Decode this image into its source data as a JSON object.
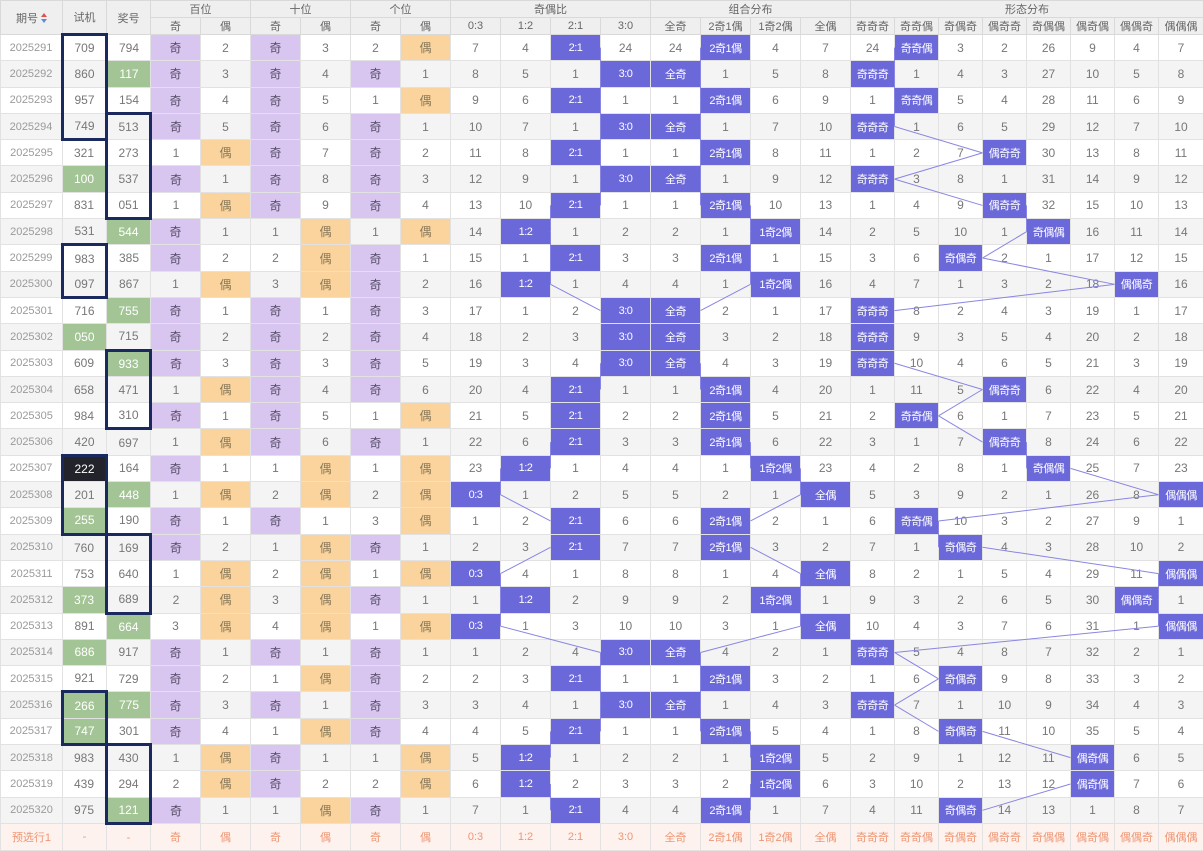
{
  "colors": {
    "hit": "#6b68d9",
    "odd_cell": "#d8c6f0",
    "even_cell": "#fbd49d",
    "green_cell": "#a3c596",
    "dark_cell": "#23232b",
    "box_border": "#1b2a5e",
    "trend_line": "#8886e2",
    "footer_bg": "#fdf2ed",
    "footer_text": "#ef9674",
    "header_bg": "#efefef",
    "zebra": "#f4f4f4"
  },
  "header": {
    "period": "期号",
    "shiji": "试机",
    "jiang": "奖号",
    "groups": [
      {
        "label": "百位",
        "span": 2
      },
      {
        "label": "十位",
        "span": 2
      },
      {
        "label": "个位",
        "span": 2
      },
      {
        "label": "奇偶比",
        "span": 4
      },
      {
        "label": "组合分布",
        "span": 4
      },
      {
        "label": "形态分布",
        "span": 8
      }
    ],
    "subs": [
      "奇",
      "偶",
      "奇",
      "偶",
      "奇",
      "偶",
      "0:3",
      "1:2",
      "2:1",
      "3:0",
      "全奇",
      "2奇1偶",
      "1奇2偶",
      "全偶",
      "奇奇奇",
      "奇奇偶",
      "奇偶奇",
      "偶奇奇",
      "奇偶偶",
      "偶奇偶",
      "偶偶奇",
      "偶偶偶"
    ]
  },
  "rows": [
    {
      "p": "2025291",
      "s": "709",
      "sc": "",
      "sb": "t",
      "j": "794",
      "jc": "",
      "jb": "",
      "c": [
        "奇",
        "2",
        "奇",
        "3",
        "2",
        "偶",
        "7",
        "4",
        "*2:1",
        "24",
        "24",
        "*2奇1偶",
        "4",
        "7",
        "24",
        "*奇奇偶",
        "3",
        "2",
        "26",
        "9",
        "4",
        "7"
      ]
    },
    {
      "p": "2025292",
      "s": "860",
      "sc": "",
      "sb": "m",
      "j": "117",
      "jc": "g",
      "jb": "",
      "c": [
        "奇",
        "3",
        "奇",
        "4",
        "奇",
        "1",
        "8",
        "5",
        "1",
        "*3:0",
        "*全奇",
        "1",
        "5",
        "8",
        "*奇奇奇",
        "1",
        "4",
        "3",
        "27",
        "10",
        "5",
        "8"
      ]
    },
    {
      "p": "2025293",
      "s": "957",
      "sc": "",
      "sb": "m",
      "j": "154",
      "jc": "",
      "jb": "",
      "c": [
        "奇",
        "4",
        "奇",
        "5",
        "1",
        "偶",
        "9",
        "6",
        "*2:1",
        "1",
        "1",
        "*2奇1偶",
        "6",
        "9",
        "1",
        "*奇奇偶",
        "5",
        "4",
        "28",
        "11",
        "6",
        "9"
      ]
    },
    {
      "p": "2025294",
      "s": "749",
      "sc": "",
      "sb": "b",
      "j": "513",
      "jc": "",
      "jb": "t",
      "c": [
        "奇",
        "5",
        "奇",
        "6",
        "奇",
        "1",
        "10",
        "7",
        "1",
        "*3:0",
        "*全奇",
        "1",
        "7",
        "10",
        "*奇奇奇",
        "1",
        "6",
        "5",
        "29",
        "12",
        "7",
        "10"
      ]
    },
    {
      "p": "2025295",
      "s": "321",
      "sc": "",
      "sb": "",
      "j": "273",
      "jc": "",
      "jb": "m",
      "c": [
        "1",
        "偶",
        "奇",
        "7",
        "奇",
        "2",
        "11",
        "8",
        "*2:1",
        "1",
        "1",
        "*2奇1偶",
        "8",
        "11",
        "1",
        "2",
        "7",
        "*偶奇奇",
        "30",
        "13",
        "8",
        "11"
      ]
    },
    {
      "p": "2025296",
      "s": "100",
      "sc": "g",
      "sb": "",
      "j": "537",
      "jc": "",
      "jb": "m",
      "c": [
        "奇",
        "1",
        "奇",
        "8",
        "奇",
        "3",
        "12",
        "9",
        "1",
        "*3:0",
        "*全奇",
        "1",
        "9",
        "12",
        "*奇奇奇",
        "3",
        "8",
        "1",
        "31",
        "14",
        "9",
        "12"
      ]
    },
    {
      "p": "2025297",
      "s": "831",
      "sc": "",
      "sb": "",
      "j": "051",
      "jc": "",
      "jb": "b",
      "c": [
        "1",
        "偶",
        "奇",
        "9",
        "奇",
        "4",
        "13",
        "10",
        "*2:1",
        "1",
        "1",
        "*2奇1偶",
        "10",
        "13",
        "1",
        "4",
        "9",
        "*偶奇奇",
        "32",
        "15",
        "10",
        "13"
      ]
    },
    {
      "p": "2025298",
      "s": "531",
      "sc": "",
      "sb": "",
      "j": "544",
      "jc": "g",
      "jb": "",
      "c": [
        "奇",
        "1",
        "1",
        "偶",
        "1",
        "偶",
        "14",
        "*1:2",
        "1",
        "2",
        "2",
        "1",
        "*1奇2偶",
        "14",
        "2",
        "5",
        "10",
        "1",
        "*奇偶偶",
        "16",
        "11",
        "14"
      ]
    },
    {
      "p": "2025299",
      "s": "983",
      "sc": "",
      "sb": "t",
      "j": "385",
      "jc": "",
      "jb": "",
      "c": [
        "奇",
        "2",
        "2",
        "偶",
        "奇",
        "1",
        "15",
        "1",
        "*2:1",
        "3",
        "3",
        "*2奇1偶",
        "1",
        "15",
        "3",
        "6",
        "*奇偶奇",
        "2",
        "1",
        "17",
        "12",
        "15"
      ]
    },
    {
      "p": "2025300",
      "s": "097",
      "sc": "",
      "sb": "b",
      "j": "867",
      "jc": "",
      "jb": "",
      "c": [
        "1",
        "偶",
        "3",
        "偶",
        "奇",
        "2",
        "16",
        "*1:2",
        "1",
        "4",
        "4",
        "1",
        "*1奇2偶",
        "16",
        "4",
        "7",
        "1",
        "3",
        "2",
        "18",
        "*偶偶奇",
        "16"
      ]
    },
    {
      "p": "2025301",
      "s": "716",
      "sc": "",
      "sb": "",
      "j": "755",
      "jc": "g",
      "jb": "",
      "c": [
        "奇",
        "1",
        "奇",
        "1",
        "奇",
        "3",
        "17",
        "1",
        "2",
        "*3:0",
        "*全奇",
        "2",
        "1",
        "17",
        "*奇奇奇",
        "8",
        "2",
        "4",
        "3",
        "19",
        "1",
        "17"
      ]
    },
    {
      "p": "2025302",
      "s": "050",
      "sc": "g",
      "sb": "",
      "j": "715",
      "jc": "",
      "jb": "",
      "c": [
        "奇",
        "2",
        "奇",
        "2",
        "奇",
        "4",
        "18",
        "2",
        "3",
        "*3:0",
        "*全奇",
        "3",
        "2",
        "18",
        "*奇奇奇",
        "9",
        "3",
        "5",
        "4",
        "20",
        "2",
        "18"
      ]
    },
    {
      "p": "2025303",
      "s": "609",
      "sc": "",
      "sb": "",
      "j": "933",
      "jc": "g",
      "jb": "t",
      "c": [
        "奇",
        "3",
        "奇",
        "3",
        "奇",
        "5",
        "19",
        "3",
        "4",
        "*3:0",
        "*全奇",
        "4",
        "3",
        "19",
        "*奇奇奇",
        "10",
        "4",
        "6",
        "5",
        "21",
        "3",
        "19"
      ]
    },
    {
      "p": "2025304",
      "s": "658",
      "sc": "",
      "sb": "",
      "j": "471",
      "jc": "",
      "jb": "m",
      "c": [
        "1",
        "偶",
        "奇",
        "4",
        "奇",
        "6",
        "20",
        "4",
        "*2:1",
        "1",
        "1",
        "*2奇1偶",
        "4",
        "20",
        "1",
        "11",
        "5",
        "*偶奇奇",
        "6",
        "22",
        "4",
        "20"
      ]
    },
    {
      "p": "2025305",
      "s": "984",
      "sc": "",
      "sb": "",
      "j": "310",
      "jc": "",
      "jb": "b",
      "c": [
        "奇",
        "1",
        "奇",
        "5",
        "1",
        "偶",
        "21",
        "5",
        "*2:1",
        "2",
        "2",
        "*2奇1偶",
        "5",
        "21",
        "2",
        "*奇奇偶",
        "6",
        "1",
        "7",
        "23",
        "5",
        "21"
      ]
    },
    {
      "p": "2025306",
      "s": "420",
      "sc": "",
      "sb": "",
      "j": "697",
      "jc": "",
      "jb": "",
      "c": [
        "1",
        "偶",
        "奇",
        "6",
        "奇",
        "1",
        "22",
        "6",
        "*2:1",
        "3",
        "3",
        "*2奇1偶",
        "6",
        "22",
        "3",
        "1",
        "7",
        "*偶奇奇",
        "8",
        "24",
        "6",
        "22"
      ]
    },
    {
      "p": "2025307",
      "s": "222",
      "sc": "k",
      "sb": "t",
      "j": "164",
      "jc": "",
      "jb": "",
      "c": [
        "奇",
        "1",
        "1",
        "偶",
        "1",
        "偶",
        "23",
        "*1:2",
        "1",
        "4",
        "4",
        "1",
        "*1奇2偶",
        "23",
        "4",
        "2",
        "8",
        "1",
        "*奇偶偶",
        "25",
        "7",
        "23"
      ]
    },
    {
      "p": "2025308",
      "s": "201",
      "sc": "",
      "sb": "m",
      "j": "448",
      "jc": "g",
      "jb": "",
      "c": [
        "1",
        "偶",
        "2",
        "偶",
        "2",
        "偶",
        "*0:3",
        "1",
        "2",
        "5",
        "5",
        "2",
        "1",
        "*全偶",
        "5",
        "3",
        "9",
        "2",
        "1",
        "26",
        "8",
        "*偶偶偶"
      ]
    },
    {
      "p": "2025309",
      "s": "255",
      "sc": "g",
      "sb": "b",
      "j": "190",
      "jc": "",
      "jb": "",
      "c": [
        "奇",
        "1",
        "奇",
        "1",
        "3",
        "偶",
        "1",
        "2",
        "*2:1",
        "6",
        "6",
        "*2奇1偶",
        "2",
        "1",
        "6",
        "*奇奇偶",
        "10",
        "3",
        "2",
        "27",
        "9",
        "1"
      ]
    },
    {
      "p": "2025310",
      "s": "760",
      "sc": "",
      "sb": "",
      "j": "169",
      "jc": "",
      "jb": "t",
      "c": [
        "奇",
        "2",
        "1",
        "偶",
        "奇",
        "1",
        "2",
        "3",
        "*2:1",
        "7",
        "7",
        "*2奇1偶",
        "3",
        "2",
        "7",
        "1",
        "*奇偶奇",
        "4",
        "3",
        "28",
        "10",
        "2"
      ]
    },
    {
      "p": "2025311",
      "s": "753",
      "sc": "",
      "sb": "",
      "j": "640",
      "jc": "",
      "jb": "m",
      "c": [
        "1",
        "偶",
        "2",
        "偶",
        "1",
        "偶",
        "*0:3",
        "4",
        "1",
        "8",
        "8",
        "1",
        "4",
        "*全偶",
        "8",
        "2",
        "1",
        "5",
        "4",
        "29",
        "11",
        "*偶偶偶"
      ]
    },
    {
      "p": "2025312",
      "s": "373",
      "sc": "g",
      "sb": "",
      "j": "689",
      "jc": "",
      "jb": "b",
      "c": [
        "2",
        "偶",
        "3",
        "偶",
        "奇",
        "1",
        "1",
        "*1:2",
        "2",
        "9",
        "9",
        "2",
        "*1奇2偶",
        "1",
        "9",
        "3",
        "2",
        "6",
        "5",
        "30",
        "*偶偶奇",
        "1"
      ]
    },
    {
      "p": "2025313",
      "s": "891",
      "sc": "",
      "sb": "",
      "j": "664",
      "jc": "g",
      "jb": "",
      "c": [
        "3",
        "偶",
        "4",
        "偶",
        "1",
        "偶",
        "*0:3",
        "1",
        "3",
        "10",
        "10",
        "3",
        "1",
        "*全偶",
        "10",
        "4",
        "3",
        "7",
        "6",
        "31",
        "1",
        "*偶偶偶"
      ]
    },
    {
      "p": "2025314",
      "s": "686",
      "sc": "g",
      "sb": "",
      "j": "917",
      "jc": "",
      "jb": "",
      "c": [
        "奇",
        "1",
        "奇",
        "1",
        "奇",
        "1",
        "1",
        "2",
        "4",
        "*3:0",
        "*全奇",
        "4",
        "2",
        "1",
        "*奇奇奇",
        "5",
        "4",
        "8",
        "7",
        "32",
        "2",
        "1"
      ]
    },
    {
      "p": "2025315",
      "s": "921",
      "sc": "",
      "sb": "",
      "j": "729",
      "jc": "",
      "jb": "",
      "c": [
        "奇",
        "2",
        "1",
        "偶",
        "奇",
        "2",
        "2",
        "3",
        "*2:1",
        "1",
        "1",
        "*2奇1偶",
        "3",
        "2",
        "1",
        "6",
        "*奇偶奇",
        "9",
        "8",
        "33",
        "3",
        "2"
      ]
    },
    {
      "p": "2025316",
      "s": "266",
      "sc": "g",
      "sb": "t",
      "j": "775",
      "jc": "g",
      "jb": "",
      "c": [
        "奇",
        "3",
        "奇",
        "1",
        "奇",
        "3",
        "3",
        "4",
        "1",
        "*3:0",
        "*全奇",
        "1",
        "4",
        "3",
        "*奇奇奇",
        "7",
        "1",
        "10",
        "9",
        "34",
        "4",
        "3"
      ]
    },
    {
      "p": "2025317",
      "s": "747",
      "sc": "g",
      "sb": "b",
      "j": "301",
      "jc": "",
      "jb": "",
      "c": [
        "奇",
        "4",
        "1",
        "偶",
        "奇",
        "4",
        "4",
        "5",
        "*2:1",
        "1",
        "1",
        "*2奇1偶",
        "5",
        "4",
        "1",
        "8",
        "*奇偶奇",
        "11",
        "10",
        "35",
        "5",
        "4"
      ]
    },
    {
      "p": "2025318",
      "s": "983",
      "sc": "",
      "sb": "",
      "j": "430",
      "jc": "",
      "jb": "t",
      "c": [
        "1",
        "偶",
        "奇",
        "1",
        "1",
        "偶",
        "5",
        "*1:2",
        "1",
        "2",
        "2",
        "1",
        "*1奇2偶",
        "5",
        "2",
        "9",
        "1",
        "12",
        "11",
        "*偶奇偶",
        "6",
        "5"
      ]
    },
    {
      "p": "2025319",
      "s": "439",
      "sc": "",
      "sb": "",
      "j": "294",
      "jc": "",
      "jb": "m",
      "c": [
        "2",
        "偶",
        "奇",
        "2",
        "2",
        "偶",
        "6",
        "*1:2",
        "2",
        "3",
        "3",
        "2",
        "*1奇2偶",
        "6",
        "3",
        "10",
        "2",
        "13",
        "12",
        "*偶奇偶",
        "7",
        "6"
      ]
    },
    {
      "p": "2025320",
      "s": "975",
      "sc": "",
      "sb": "",
      "j": "121",
      "jc": "g",
      "jb": "b",
      "c": [
        "奇",
        "1",
        "1",
        "偶",
        "奇",
        "1",
        "7",
        "1",
        "*2:1",
        "4",
        "4",
        "*2奇1偶",
        "1",
        "7",
        "4",
        "11",
        "*奇偶奇",
        "14",
        "13",
        "1",
        "8",
        "7"
      ]
    }
  ],
  "footer": [
    "预选行1",
    "-",
    "-",
    "奇",
    "偶",
    "奇",
    "偶",
    "奇",
    "偶",
    "0:3",
    "1:2",
    "2:1",
    "3:0",
    "全奇",
    "2奇1偶",
    "1奇2偶",
    "全偶",
    "奇奇奇",
    "奇奇偶",
    "奇偶奇",
    "偶奇奇",
    "奇偶偶",
    "偶奇偶",
    "偶偶奇",
    "偶偶偶"
  ]
}
